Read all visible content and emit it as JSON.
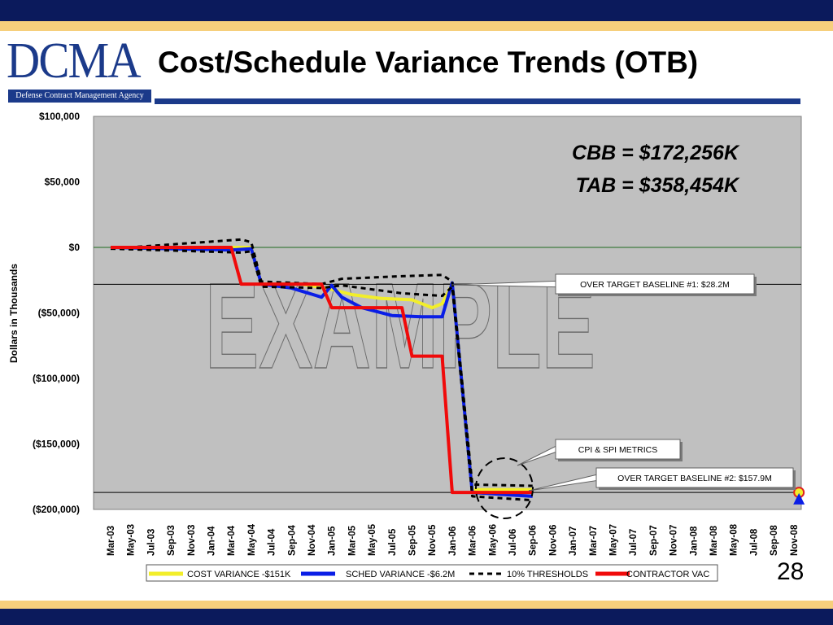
{
  "header": {
    "logo_text": "DCMA",
    "logo_subtitle": "Defense Contract Management Agency",
    "title": "Cost/Schedule Variance Trends (OTB)"
  },
  "page_number": "28",
  "colors": {
    "navy": "#0b1a5c",
    "gold": "#f6cf7c",
    "plot_bg": "#c0c0c0",
    "cost_variance": "#f2ee2a",
    "sched_variance": "#0a1ee6",
    "threshold": "#000000",
    "contractor_vac": "#f00a0a"
  },
  "chart_data": {
    "type": "line",
    "ylabel": "Dollars in Thousands",
    "ylim": [
      -200000,
      100000
    ],
    "y_ticks": [
      "$100,000",
      "$50,000",
      "$0",
      "($50,000)",
      "($100,000)",
      "($150,000)",
      "($200,000)"
    ],
    "x_labels": [
      "Mar-03",
      "May-03",
      "Jul-03",
      "Sep-03",
      "Nov-03",
      "Jan-04",
      "Mar-04",
      "May-04",
      "Jul-04",
      "Sep-04",
      "Nov-04",
      "Jan-05",
      "Mar-05",
      "May-05",
      "Jul-05",
      "Sep-05",
      "Nov-05",
      "Jan-06",
      "Mar-06",
      "May-06",
      "Jul-06",
      "Sep-06",
      "Nov-06",
      "Jan-07",
      "Mar-07",
      "May-07",
      "Jul-07",
      "Sep-07",
      "Nov-07",
      "Jan-08",
      "Mar-08",
      "May-08",
      "Jul-08",
      "Sep-08",
      "Nov-08"
    ],
    "grid": false,
    "legend_position": "bottom",
    "series": [
      {
        "name": "COST VARIANCE -$151K",
        "color": "#f2ee2a",
        "style": "solid",
        "points": [
          [
            "Mar-03",
            0
          ],
          [
            "Mar-04",
            0
          ],
          [
            "May-04",
            0
          ],
          [
            "Jun-04",
            -28000
          ],
          [
            "Oct-04",
            -28000
          ],
          [
            "Jan-05",
            -32000
          ],
          [
            "Mar-05",
            -36000
          ],
          [
            "Jun-05",
            -39000
          ],
          [
            "Sep-05",
            -40000
          ],
          [
            "Nov-05",
            -46000
          ],
          [
            "Dec-05",
            -43000
          ],
          [
            "Jan-06",
            -28000
          ],
          [
            "Mar-06",
            -185000
          ],
          [
            "Sep-06",
            -185000
          ]
        ]
      },
      {
        "name": "SCHED VARIANCE -$6.2M",
        "color": "#0a1ee6",
        "style": "solid",
        "points": [
          [
            "Mar-03",
            0
          ],
          [
            "Mar-04",
            -2000
          ],
          [
            "May-04",
            -1000
          ],
          [
            "Jun-04",
            -28000
          ],
          [
            "Sep-04",
            -31000
          ],
          [
            "Dec-04",
            -38000
          ],
          [
            "Jan-05",
            -29000
          ],
          [
            "Feb-05",
            -38000
          ],
          [
            "Apr-05",
            -46000
          ],
          [
            "Jul-05",
            -52000
          ],
          [
            "Oct-05",
            -53000
          ],
          [
            "Dec-05",
            -53000
          ],
          [
            "Jan-06",
            -27000
          ],
          [
            "Mar-06",
            -187000
          ],
          [
            "Sep-06",
            -190000
          ]
        ]
      },
      {
        "name": "10% THRESHOLDS",
        "color": "#000000",
        "style": "dashed",
        "points": [
          [
            "Mar-03",
            -1000
          ],
          [
            "Apr-04",
            6000
          ],
          [
            "May-04",
            4000
          ],
          [
            "Jun-04",
            -26000
          ],
          [
            "Dec-04",
            -28000
          ],
          [
            "Feb-05",
            -24000
          ],
          [
            "Aug-05",
            -22000
          ],
          [
            "Dec-05",
            -21000
          ],
          [
            "Jan-06",
            -26000
          ],
          [
            "Mar-06",
            -181000
          ],
          [
            "Sep-06",
            -182000
          ]
        ]
      },
      {
        "name": "",
        "color": "#000000",
        "style": "dashed",
        "points": [
          [
            "Mar-03",
            -1000
          ],
          [
            "Apr-04",
            -4000
          ],
          [
            "May-04",
            -3000
          ],
          [
            "Jun-04",
            -30000
          ],
          [
            "Dec-04",
            -31000
          ],
          [
            "Feb-05",
            -29000
          ],
          [
            "Aug-05",
            -35000
          ],
          [
            "Dec-05",
            -37000
          ],
          [
            "Jan-06",
            -30000
          ],
          [
            "Mar-06",
            -190000
          ],
          [
            "Sep-06",
            -193000
          ]
        ]
      },
      {
        "name": "CONTRACTOR VAC",
        "color": "#f00a0a",
        "style": "solid",
        "points": [
          [
            "Mar-03",
            0
          ],
          [
            "Mar-04",
            0
          ],
          [
            "Apr-04",
            -28000
          ],
          [
            "Dec-04",
            -28000
          ],
          [
            "Jan-05",
            -46000
          ],
          [
            "Aug-05",
            -46000
          ],
          [
            "Sep-05",
            -83000
          ],
          [
            "Dec-05",
            -83000
          ],
          [
            "Jan-06",
            -187000
          ],
          [
            "Sep-06",
            -187000
          ]
        ]
      }
    ],
    "reference_lines": [
      {
        "y": 0,
        "color": "#1e6a1e"
      },
      {
        "y": -28200,
        "color": "#000000"
      },
      {
        "y": -187000,
        "color": "#000000"
      }
    ],
    "end_markers": [
      {
        "x": "Dec-08",
        "y": -187000,
        "color": "#f2ee2a",
        "shape": "circle"
      },
      {
        "x": "Dec-08",
        "y": -190000,
        "color": "#0a1ee6",
        "shape": "triangle"
      }
    ],
    "watermark": "EXAMPLE",
    "annotations": {
      "cbb": "CBB = $172,256K",
      "tab": "TAB = $358,454K",
      "callout_otb1": "OVER TARGET BASELINE #1: $28.2M",
      "callout_metrics": "CPI & SPI METRICS",
      "callout_otb2": "OVER TARGET BASELINE #2: $157.9M"
    }
  }
}
